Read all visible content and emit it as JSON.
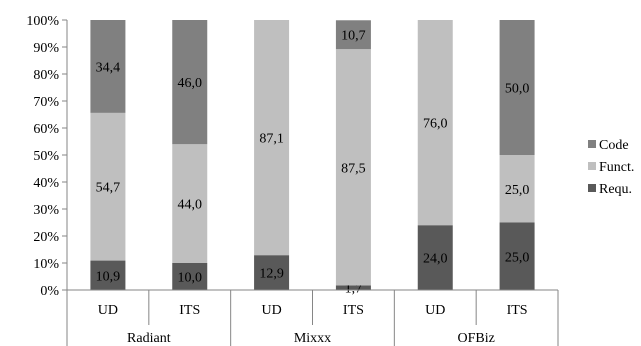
{
  "chart_data": {
    "type": "bar",
    "stacked": true,
    "percent": true,
    "categories": [
      "UD",
      "ITS",
      "UD",
      "ITS",
      "UD",
      "ITS"
    ],
    "groups": [
      {
        "label": "Radiant",
        "categories": [
          "UD",
          "ITS"
        ]
      },
      {
        "label": "Mixxx",
        "categories": [
          "UD",
          "ITS"
        ]
      },
      {
        "label": "OFBiz",
        "categories": [
          "UD",
          "ITS"
        ]
      }
    ],
    "series": [
      {
        "name": "Requ.",
        "color": "#595959",
        "values": [
          10.9,
          10.0,
          12.9,
          1.7,
          24.0,
          25.0
        ],
        "labels": [
          "10,9",
          "10,0",
          "12,9",
          "1,7",
          "24,0",
          "25,0"
        ]
      },
      {
        "name": "Funct.",
        "color": "#bfbfbf",
        "values": [
          54.7,
          44.0,
          87.1,
          87.5,
          76.0,
          25.0
        ],
        "labels": [
          "54,7",
          "44,0",
          "87,1",
          "87,5",
          "76,0",
          "25,0"
        ]
      },
      {
        "name": "Code",
        "color": "#808080",
        "values": [
          34.4,
          46.0,
          0,
          10.7,
          0,
          50.0
        ],
        "labels": [
          "34,4",
          "46,0",
          "",
          "10,7",
          "",
          "50,0"
        ]
      }
    ],
    "yticks": [
      "0%",
      "10%",
      "20%",
      "30%",
      "40%",
      "50%",
      "60%",
      "70%",
      "80%",
      "90%",
      "100%"
    ],
    "ylim": [
      0,
      100
    ],
    "legend": {
      "position": "right",
      "order": [
        "Code",
        "Funct.",
        "Requ."
      ]
    },
    "grid": false
  }
}
